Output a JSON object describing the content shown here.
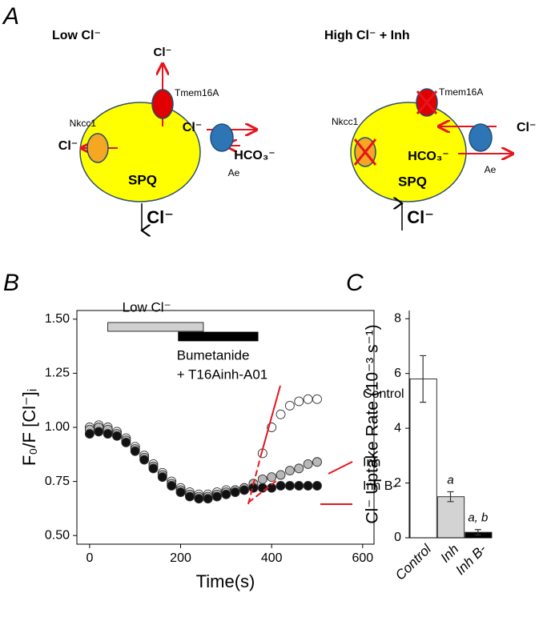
{
  "panel_labels": [
    "A",
    "B",
    "C"
  ],
  "diagram": {
    "left": {
      "title": "Low Cl⁻",
      "cl_out_top": "Cl⁻",
      "tmem16a": "Tmem16A",
      "nkcc1": "Nkcc1",
      "cl_out_left": "Cl⁻",
      "cl_in": "Cl⁻",
      "hco3": "HCO₃⁻",
      "ae": "Ae",
      "cell": "SPQ",
      "result": "Cl⁻"
    },
    "right": {
      "title": "High Cl⁻ + Inh",
      "tmem16a": "Tmem16A",
      "nkcc1": "Nkcc1",
      "hco3": "HCO₃⁻",
      "cl_out": "Cl⁻",
      "ae": "Ae",
      "cell": "SPQ",
      "result": "Cl⁻"
    }
  },
  "chart_data": [
    {
      "type": "scatter",
      "xlabel": "Time(s)",
      "ylabel": "F₀/F [Cl⁻]ᵢ",
      "x": [
        0,
        20,
        40,
        60,
        80,
        100,
        120,
        140,
        160,
        180,
        200,
        220,
        240,
        260,
        280,
        300,
        320,
        340,
        360,
        380,
        400,
        420,
        440,
        460,
        480,
        500
      ],
      "series": [
        {
          "name": "Control",
          "color": "#ffffff",
          "values": [
            1.0,
            1.01,
            1.0,
            0.98,
            0.95,
            0.91,
            0.87,
            0.83,
            0.79,
            0.75,
            0.72,
            0.7,
            0.69,
            0.69,
            0.7,
            0.71,
            0.71,
            0.72,
            0.74,
            0.88,
            1.0,
            1.06,
            1.1,
            1.12,
            1.13,
            1.13
          ]
        },
        {
          "name": "Inh",
          "color": "#b8b8b8",
          "values": [
            0.99,
            1.0,
            0.99,
            0.97,
            0.94,
            0.9,
            0.86,
            0.82,
            0.78,
            0.74,
            0.71,
            0.69,
            0.68,
            0.68,
            0.69,
            0.7,
            0.71,
            0.72,
            0.74,
            0.76,
            0.77,
            0.78,
            0.8,
            0.81,
            0.83,
            0.84
          ]
        },
        {
          "name": "Inh B-",
          "color": "#111111",
          "values": [
            0.97,
            0.98,
            0.97,
            0.96,
            0.93,
            0.89,
            0.85,
            0.81,
            0.77,
            0.73,
            0.7,
            0.68,
            0.67,
            0.67,
            0.68,
            0.69,
            0.7,
            0.71,
            0.72,
            0.72,
            0.72,
            0.73,
            0.73,
            0.73,
            0.73,
            0.73
          ]
        }
      ],
      "xlim": [
        -28,
        625
      ],
      "xticks": [
        0,
        200,
        400,
        600
      ],
      "ylim": [
        0.46,
        1.54
      ],
      "yticks": [
        {
          "value": 1.5,
          "label": "1.50"
        },
        {
          "value": 1.25,
          "label": "1.25"
        },
        {
          "value": 1,
          "label": "1.00"
        },
        {
          "value": 0.75,
          "label": "0.75"
        },
        {
          "value": 0.5,
          "label": "0.50"
        }
      ],
      "periods": [
        {
          "label_lines": [
            "Low Cl⁻"
          ],
          "start": 40,
          "end": 250,
          "color": "#d0d0d0"
        },
        {
          "label_lines": [
            "Bumetanide",
            "+ T16Ainh-A01"
          ],
          "start": 195,
          "end": 370,
          "color": "#000000"
        }
      ]
    },
    {
      "type": "bar",
      "ylabel": "Cl⁻ Uptake Rate (10⁻³ s⁻¹)",
      "categories": [
        "Control",
        "Inh",
        "Inh B-"
      ],
      "values": [
        5.8,
        1.5,
        0.2
      ],
      "errors": [
        0.85,
        0.18,
        0.1
      ],
      "colors": [
        "#ffffff",
        "#d3d3d3",
        "#000000"
      ],
      "annotations": [
        null,
        "a",
        "a, b"
      ],
      "ylim": [
        0,
        8.3
      ],
      "yticks": [
        0,
        2,
        4,
        6,
        8
      ]
    }
  ]
}
